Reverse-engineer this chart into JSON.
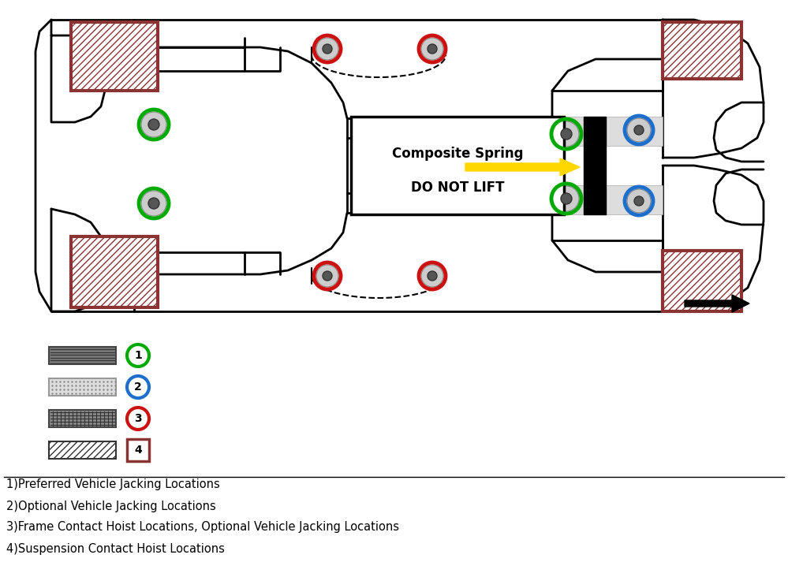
{
  "bg_color": "#ffffff",
  "brown_color": "#8B3333",
  "green_color": "#00AA00",
  "blue_color": "#1E6FCC",
  "red_color": "#CC1111",
  "yellow_color": "#FFD700",
  "black_color": "#000000",
  "composite_spring_text": [
    "Composite Spring",
    "DO NOT LIFT"
  ],
  "legend_labels": [
    "1)Preferred Vehicle Jacking Locations",
    "2)Optional Vehicle Jacking Locations",
    "3)Frame Contact Hoist Locations, Optional Vehicle Jacking Locations",
    "4)Suspension Contact Hoist Locations"
  ]
}
